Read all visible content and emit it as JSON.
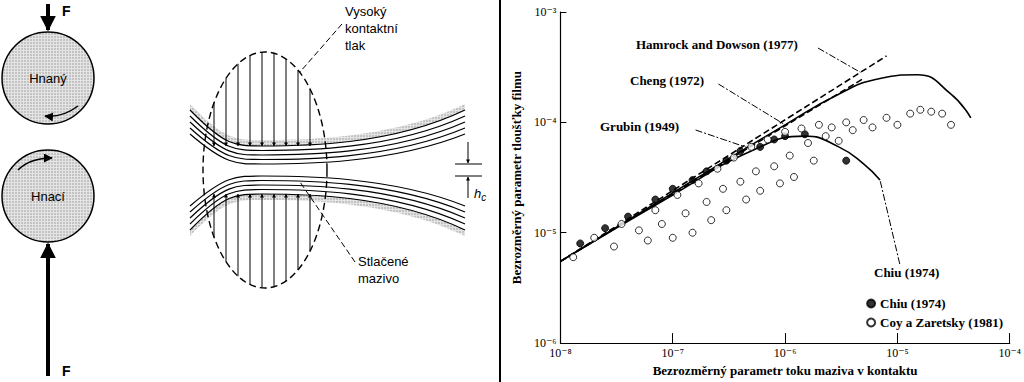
{
  "diagram": {
    "forces": [
      "F",
      "F"
    ],
    "rollers": [
      "Hnaný",
      "Hnací"
    ],
    "pressure_label": [
      "Vysoký",
      "kontaktní",
      "tlak"
    ],
    "lubricant_label": [
      "Stlačené",
      "mazivo"
    ],
    "film_thickness": {
      "symbol": "h",
      "subscript": "c"
    }
  },
  "chart_data": {
    "type": "scatter",
    "x_label": "Bezrozměrný parametr toku maziva v kontaktu",
    "y_label": "Bezrozměrný parametr tloušťky filmu",
    "log": true,
    "grid": false,
    "legend": "lower right",
    "xlim": [
      1e-08,
      0.0001
    ],
    "ylim": [
      1e-06,
      0.001
    ],
    "xticks": [
      {
        "value": 1e-08,
        "label": "10⁻⁸"
      },
      {
        "value": 1e-07,
        "label": "10⁻⁷"
      },
      {
        "value": 1e-06,
        "label": "10⁻⁶"
      },
      {
        "value": 1e-05,
        "label": "10⁻⁵"
      },
      {
        "value": 0.0001,
        "label": "10⁻⁴"
      }
    ],
    "yticks": [
      {
        "value": 1e-06,
        "label": "10⁻⁶"
      },
      {
        "value": 1e-05,
        "label": "10⁻⁵"
      },
      {
        "value": 0.0001,
        "label": "10⁻⁴"
      },
      {
        "value": 0.001,
        "label": "10⁻³"
      }
    ],
    "series": [
      {
        "name": "Chiu (1974)",
        "type": "scatter",
        "marker": "circle",
        "color": "#000000",
        "x": [
          1.5e-08,
          2.5e-08,
          4e-08,
          7e-08,
          1e-07,
          1.5e-07,
          2e-07,
          3e-07,
          4e-07,
          6e-07,
          8e-07,
          1e-06,
          1.5e-06,
          3.5e-06
        ],
        "values": [
          8e-06,
          1.1e-05,
          1.4e-05,
          2e-05,
          2.5e-05,
          3e-05,
          3.6e-05,
          4.5e-05,
          5.5e-05,
          6e-05,
          7e-05,
          7.5e-05,
          7.8e-05,
          4.5e-05
        ]
      },
      {
        "name": "Coy a Zaretsky (1981)",
        "type": "scatter",
        "marker": "open_circle",
        "color": "#000000",
        "x": [
          1.3e-08,
          2e-08,
          3e-08,
          3.5e-08,
          5e-08,
          6e-08,
          7e-08,
          8e-08,
          1e-07,
          1.1e-07,
          1.3e-07,
          1.5e-07,
          1.7e-07,
          2e-07,
          2.2e-07,
          2.5e-07,
          2.8e-07,
          3e-07,
          3.5e-07,
          4e-07,
          4.5e-07,
          5e-07,
          5.5e-07,
          6e-07,
          7e-07,
          8e-07,
          9e-07,
          1e-06,
          1.1e-06,
          1.2e-06,
          1.4e-06,
          1.6e-06,
          1.8e-06,
          2e-06,
          2.3e-06,
          2.6e-06,
          3e-06,
          3.5e-06,
          4e-06,
          5e-06,
          6e-06,
          8e-06,
          1e-05,
          1.3e-05,
          1.6e-05,
          2e-05,
          2.5e-05,
          3e-05
        ],
        "values": [
          6e-06,
          9e-06,
          7.5e-06,
          1.2e-05,
          1.05e-05,
          8.5e-06,
          1.6e-05,
          1.2e-05,
          9e-06,
          2.2e-05,
          1.5e-05,
          1e-05,
          2.8e-05,
          1.9e-05,
          1.3e-05,
          3.8e-05,
          2.5e-05,
          1.6e-05,
          4.8e-05,
          2.9e-05,
          2e-05,
          6e-05,
          3.6e-05,
          2.4e-05,
          7e-05,
          4e-05,
          2.8e-05,
          8.2e-05,
          5e-05,
          3.2e-05,
          8.8e-05,
          6.5e-05,
          4.5e-05,
          9.5e-05,
          7.5e-05,
          9e-05,
          6.8e-05,
          0.0001,
          8.5e-05,
          0.000105,
          9e-05,
          0.00011,
          9.5e-05,
          0.00012,
          0.00013,
          0.000125,
          0.00012,
          9.5e-05
        ]
      },
      {
        "name": "Hamrock and Dowson (1977)",
        "type": "line",
        "line_style": "dashed",
        "color": "#000000",
        "x": [
          1e-08,
          8e-06
        ],
        "values": [
          5.5e-06,
          0.0004
        ]
      },
      {
        "name": "Grubin (1949)",
        "type": "line",
        "line_style": "dashed",
        "color": "#000000",
        "x": [
          1e-08,
          5e-06
        ],
        "values": [
          5.5e-06,
          0.00025
        ]
      },
      {
        "name": "Cheng (1972)",
        "type": "line",
        "line_style": "solid",
        "color": "#000000",
        "x": [
          1e-08,
          1e-07,
          1e-06,
          3e-06,
          7e-06,
          1.5e-05,
          3e-05,
          4.5e-05
        ],
        "values": [
          5.5e-06,
          2.3e-05,
          9.5e-05,
          0.00018,
          0.00025,
          0.00027,
          0.00018,
          0.00011
        ]
      },
      {
        "name": "Chiu (1974)",
        "type": "line",
        "line_style": "solid",
        "color": "#000000",
        "x": [
          1e-08,
          1e-07,
          5e-07,
          1.5e-06,
          3e-06,
          5e-06,
          7e-06
        ],
        "values": [
          5.5e-06,
          2.2e-05,
          5.5e-05,
          7.5e-05,
          6e-05,
          4.2e-05,
          3e-05
        ]
      }
    ]
  }
}
